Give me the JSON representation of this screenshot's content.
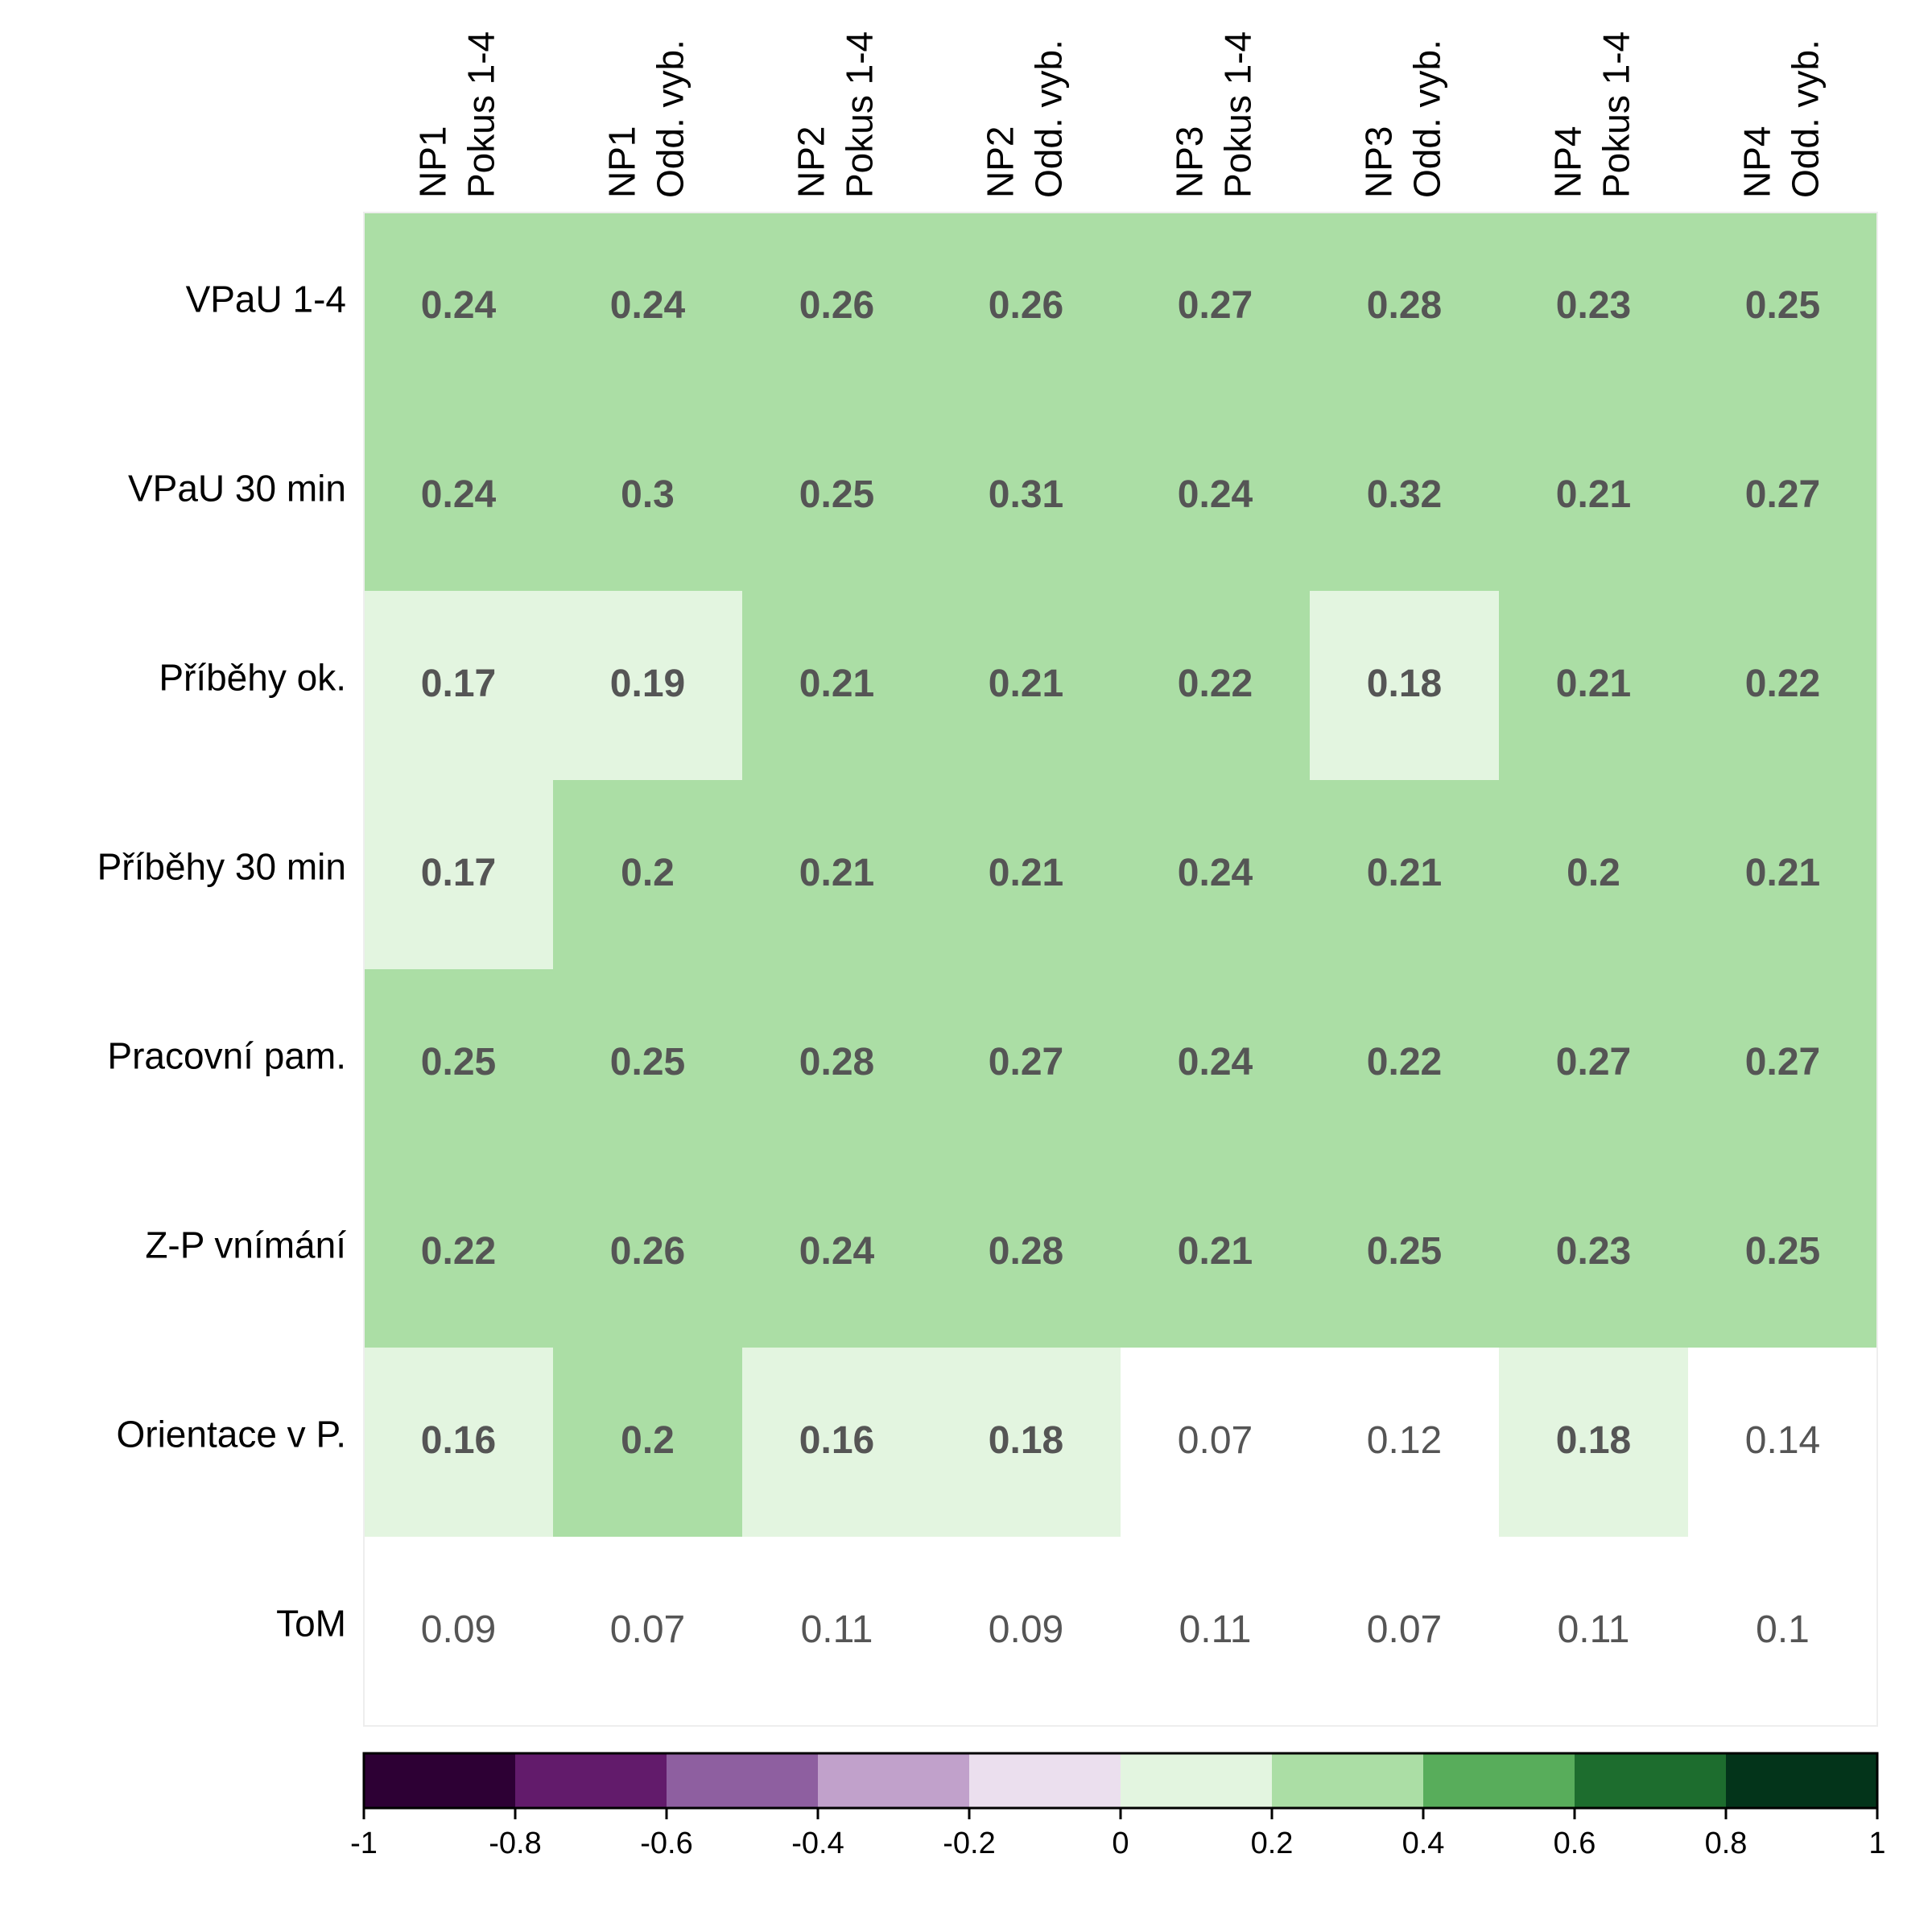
{
  "chart_data": {
    "type": "heatmap",
    "columns": [
      [
        "NP1",
        "Pokus 1-4"
      ],
      [
        "NP1",
        "Odd. vyb."
      ],
      [
        "NP2",
        "Pokus 1-4"
      ],
      [
        "NP2",
        "Odd. vyb."
      ],
      [
        "NP3",
        "Pokus 1-4"
      ],
      [
        "NP3",
        "Odd. vyb."
      ],
      [
        "NP4",
        "Pokus 1-4"
      ],
      [
        "NP4",
        "Odd. vyb."
      ]
    ],
    "rows": [
      "VPaU 1-4",
      "VPaU 30 min",
      "Příběhy ok.",
      "Příběhy 30 min",
      "Pracovní pam.",
      "Z-P vnímání",
      "Orientace v P.",
      "ToM"
    ],
    "values": [
      [
        "0.24",
        "0.24",
        "0.26",
        "0.26",
        "0.27",
        "0.28",
        "0.23",
        "0.25"
      ],
      [
        "0.24",
        "0.3",
        "0.25",
        "0.31",
        "0.24",
        "0.32",
        "0.21",
        "0.27"
      ],
      [
        "0.17",
        "0.19",
        "0.21",
        "0.21",
        "0.22",
        "0.18",
        "0.21",
        "0.22"
      ],
      [
        "0.17",
        "0.2",
        "0.21",
        "0.21",
        "0.24",
        "0.21",
        "0.2",
        "0.21"
      ],
      [
        "0.25",
        "0.25",
        "0.28",
        "0.27",
        "0.24",
        "0.22",
        "0.27",
        "0.27"
      ],
      [
        "0.22",
        "0.26",
        "0.24",
        "0.28",
        "0.21",
        "0.25",
        "0.23",
        "0.25"
      ],
      [
        "0.16",
        "0.2",
        "0.16",
        "0.18",
        "0.07",
        "0.12",
        "0.18",
        "0.14"
      ],
      [
        "0.09",
        "0.07",
        "0.11",
        "0.09",
        "0.11",
        "0.07",
        "0.11",
        "0.1"
      ]
    ],
    "significant": [
      [
        true,
        true,
        true,
        true,
        true,
        true,
        true,
        true
      ],
      [
        true,
        true,
        true,
        true,
        true,
        true,
        true,
        true
      ],
      [
        true,
        true,
        true,
        true,
        true,
        true,
        true,
        true
      ],
      [
        true,
        true,
        true,
        true,
        true,
        true,
        true,
        true
      ],
      [
        true,
        true,
        true,
        true,
        true,
        true,
        true,
        true
      ],
      [
        true,
        true,
        true,
        true,
        true,
        true,
        true,
        true
      ],
      [
        true,
        true,
        true,
        true,
        false,
        false,
        true,
        false
      ],
      [
        false,
        false,
        false,
        false,
        false,
        false,
        false,
        false
      ]
    ],
    "colorbar": {
      "range": [
        -1,
        1
      ],
      "ticks": [
        "-1",
        "-0.8",
        "-0.6",
        "-0.4",
        "-0.2",
        "0",
        "0.2",
        "0.4",
        "0.6",
        "0.8",
        "1"
      ],
      "bins": [
        "#2d0034",
        "#621b6b",
        "#8e5fa0",
        "#c1a1cb",
        "#ebdfee",
        "#e3f5e0",
        "#abdea5",
        "#58ad5b",
        "#1d6d2e",
        "#03341a"
      ],
      "insignificant_color": "#ffffff"
    }
  }
}
